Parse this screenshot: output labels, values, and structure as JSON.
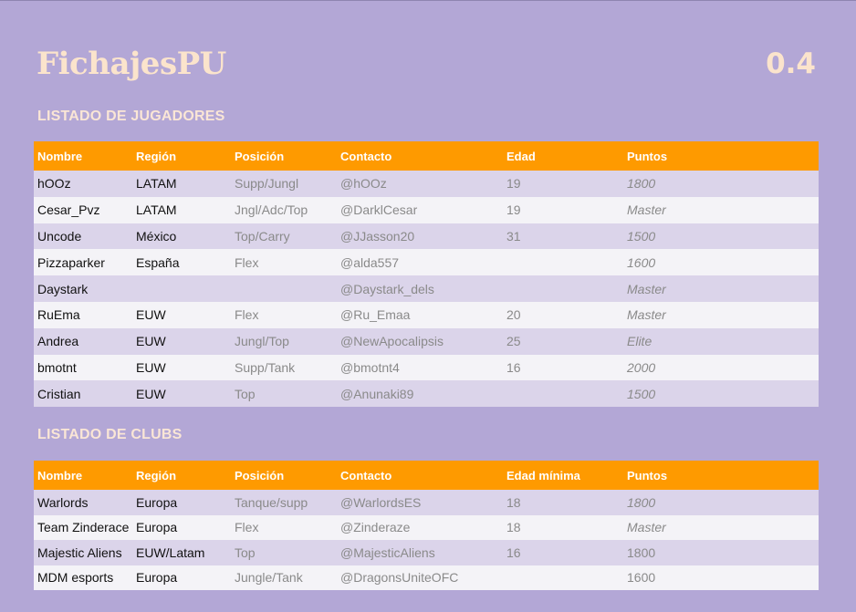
{
  "app": {
    "title": "FichajesPU",
    "version": "0.4"
  },
  "players": {
    "title": "LISTADO DE JUGADORES",
    "headers": [
      "Nombre",
      "Región",
      "Posición",
      "Contacto",
      "Edad",
      "Puntos"
    ],
    "rows": [
      [
        "hOOz",
        "LATAM",
        "Supp/Jungl",
        "@hOOz",
        "19",
        "1800"
      ],
      [
        "Cesar_Pvz",
        "LATAM",
        "Jngl/Adc/Top",
        "@DarklCesar",
        "19",
        "Master"
      ],
      [
        "Uncode",
        "México",
        "Top/Carry",
        "@JJasson20",
        "31",
        "1500"
      ],
      [
        "Pizzaparker",
        "España",
        "Flex",
        "@alda557",
        "",
        "1600"
      ],
      [
        "Daystark",
        "",
        "",
        "@Daystark_dels",
        "",
        "Master"
      ],
      [
        "RuEma",
        "EUW",
        "Flex",
        "@Ru_Emaa",
        "20",
        "Master"
      ],
      [
        "Andrea",
        "EUW",
        "Jungl/Top",
        "@NewApocalipsis",
        "25",
        "Elite"
      ],
      [
        "bmotnt",
        "EUW",
        "Supp/Tank",
        "@bmotnt4",
        "16",
        "2000"
      ],
      [
        "Cristian",
        "EUW",
        "Top",
        "@Anunaki89",
        "",
        "1500"
      ]
    ]
  },
  "clubs": {
    "title": "LISTADO DE CLUBS",
    "headers": [
      "Nombre",
      "Región",
      "Posición",
      "Contacto",
      "Edad mínima",
      "Puntos"
    ],
    "rows": [
      [
        "Warlords",
        "Europa",
        "Tanque/supp",
        "@WarlordsES",
        "18",
        "1800"
      ],
      [
        "Team Zinderace",
        "Europa",
        "Flex",
        "@Zinderaze",
        "18",
        "Master"
      ],
      [
        "Majestic Aliens",
        "EUW/Latam",
        "Top",
        "@MajesticAliens",
        "16",
        "1800"
      ],
      [
        "MDM esports",
        "Europa",
        "Jungle/Tank",
        "@DragonsUniteOFC",
        "",
        "1600"
      ]
    ]
  }
}
